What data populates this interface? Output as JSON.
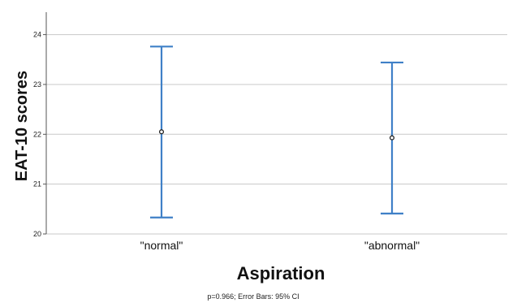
{
  "chart_data": {
    "type": "errorbar",
    "title": "",
    "xlabel": "Aspiration",
    "ylabel": "EAT-10 scores",
    "footnote": "p=0.966; Error Bars: 95% CI",
    "categories": [
      "\"normal\"",
      "\"abnormal\""
    ],
    "series": [
      {
        "points": [
          {
            "category": "\"normal\"",
            "mean": 22.05,
            "lower": 20.33,
            "upper": 23.76
          },
          {
            "category": "\"abnormal\"",
            "mean": 21.93,
            "lower": 20.41,
            "upper": 23.44
          }
        ]
      }
    ],
    "ylim": [
      20,
      24.45
    ],
    "yticks": [
      "20",
      "21",
      "22",
      "23",
      "24"
    ],
    "grid": true,
    "legend": "none",
    "colors": {
      "error_bar": "#3f80c7",
      "grid": "#c8c8c8",
      "axis": "#555555",
      "marker": "#222222"
    }
  }
}
